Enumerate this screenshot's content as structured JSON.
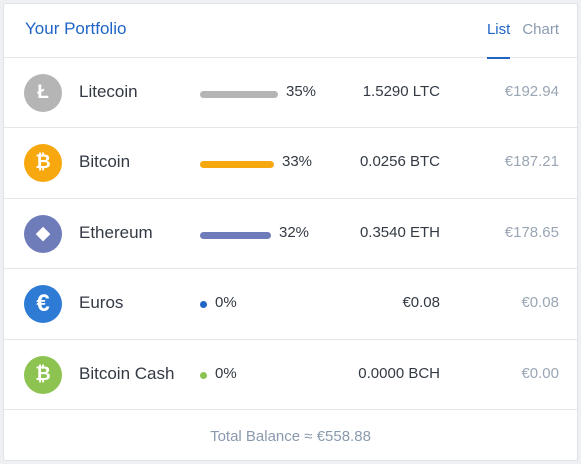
{
  "header": {
    "title": "Your Portfolio",
    "tabs": [
      {
        "label": "List",
        "active": true
      },
      {
        "label": "Chart",
        "active": false
      }
    ]
  },
  "assets": [
    {
      "name": "Litecoin",
      "icon": "litecoin-icon",
      "glyph": "Ł",
      "color": "#b5b5b5",
      "percent": "35%",
      "share": 35,
      "amount": "1.5290 LTC",
      "fiat": "€192.94"
    },
    {
      "name": "Bitcoin",
      "icon": "bitcoin-icon",
      "glyph": "₿",
      "color": "#f7a80f",
      "percent": "33%",
      "share": 33,
      "amount": "0.0256 BTC",
      "fiat": "€187.21"
    },
    {
      "name": "Ethereum",
      "icon": "ethereum-icon",
      "glyph": "◆",
      "color": "#6f7cba",
      "percent": "32%",
      "share": 32,
      "amount": "0.3540 ETH",
      "fiat": "€178.65"
    },
    {
      "name": "Euros",
      "icon": "euro-icon",
      "glyph": "€",
      "color": "#2e7bd6",
      "percent": "0%",
      "share": 0,
      "amount": "€0.08",
      "fiat": "€0.08"
    },
    {
      "name": "Bitcoin Cash",
      "icon": "bitcoin-cash-icon",
      "glyph": "₿",
      "color": "#8dc351",
      "percent": "0%",
      "share": 0,
      "amount": "0.0000 BCH",
      "fiat": "€0.00"
    }
  ],
  "footer": {
    "total_label": "Total Balance ≈ €558.88"
  }
}
